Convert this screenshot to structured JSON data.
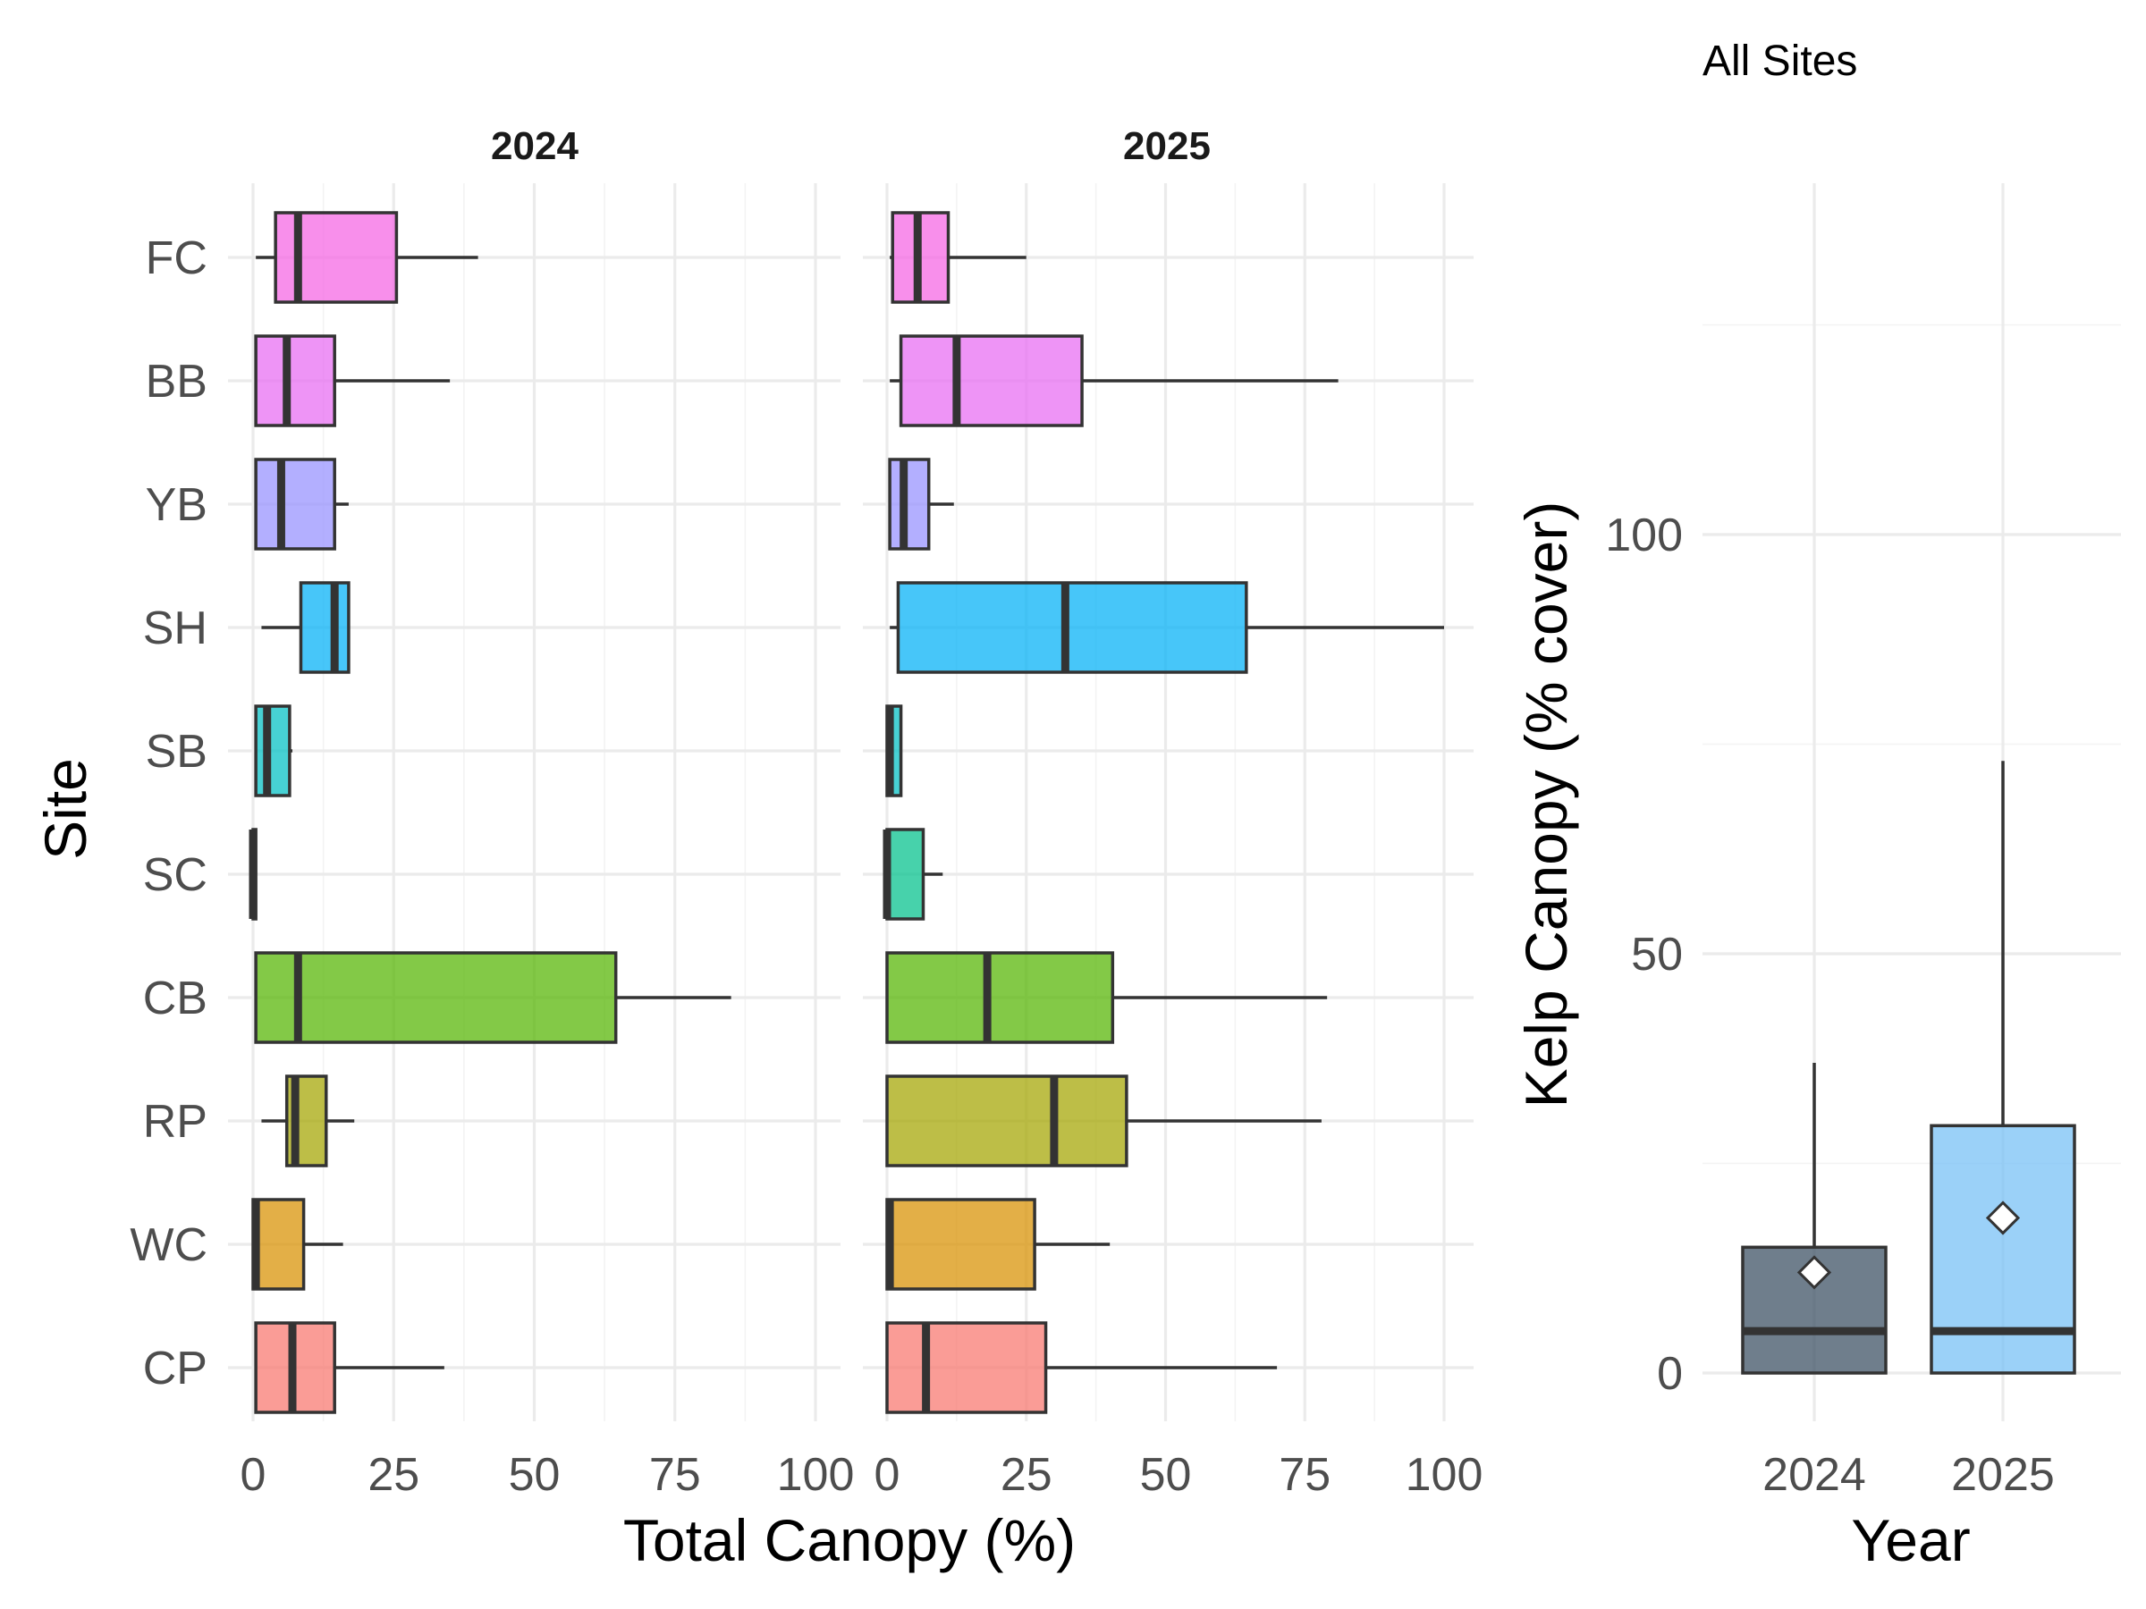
{
  "colors": {
    "FC": "#F564E3",
    "BB": "#E76BF3",
    "YB": "#9590FF",
    "SH": "#00B0F6",
    "SB": "#00BFC4",
    "SC": "#00C08B",
    "CB": "#53B400",
    "RP": "#A3A500",
    "WC": "#D89000",
    "CP": "#F8766D",
    "year_2024": "#3F5366",
    "year_2025": "#74BFF5"
  },
  "chart_data": [
    {
      "type": "boxplot",
      "orientation": "horizontal",
      "xlabel": "Total Canopy (%)",
      "ylabel": "Site",
      "xlim": [
        0,
        100
      ],
      "xticks": [
        "0",
        "25",
        "50",
        "75",
        "100"
      ],
      "sites": [
        "FC",
        "BB",
        "YB",
        "SH",
        "SB",
        "SC",
        "CB",
        "RP",
        "WC",
        "CP"
      ],
      "grid": true,
      "facets": [
        {
          "label": "2024",
          "boxes": [
            {
              "site": "FC",
              "min": 0.5,
              "q1": 4,
              "median": 8,
              "q3": 25.5,
              "max": 40
            },
            {
              "site": "BB",
              "min": 0.5,
              "q1": 0.5,
              "median": 6,
              "q3": 14.5,
              "max": 35
            },
            {
              "site": "YB",
              "min": 0.5,
              "q1": 0.5,
              "median": 5,
              "q3": 14.5,
              "max": 17
            },
            {
              "site": "SH",
              "min": 1.5,
              "q1": 8.5,
              "median": 14.5,
              "q3": 17,
              "max": 17
            },
            {
              "site": "SB",
              "min": 0.5,
              "q1": 0.5,
              "median": 2.5,
              "q3": 6.5,
              "max": 7
            },
            {
              "site": "SC",
              "min": 0,
              "q1": 0,
              "median": 0,
              "q3": 0.5,
              "max": 0.5
            },
            {
              "site": "CB",
              "min": 0.5,
              "q1": 0.5,
              "median": 8,
              "q3": 64.5,
              "max": 85
            },
            {
              "site": "RP",
              "min": 1.5,
              "q1": 6,
              "median": 7.5,
              "q3": 13,
              "max": 18
            },
            {
              "site": "WC",
              "min": 0,
              "q1": 0,
              "median": 0.5,
              "q3": 9,
              "max": 16
            },
            {
              "site": "CP",
              "min": 0.5,
              "q1": 0.5,
              "median": 7,
              "q3": 14.5,
              "max": 34
            }
          ]
        },
        {
          "label": "2025",
          "boxes": [
            {
              "site": "FC",
              "min": 0.5,
              "q1": 1,
              "median": 5.5,
              "q3": 11,
              "max": 25
            },
            {
              "site": "BB",
              "min": 0.5,
              "q1": 2.5,
              "median": 12.5,
              "q3": 35,
              "max": 81
            },
            {
              "site": "YB",
              "min": 0.5,
              "q1": 0.5,
              "median": 3,
              "q3": 7.5,
              "max": 12
            },
            {
              "site": "SH",
              "min": 0.5,
              "q1": 2,
              "median": 32,
              "q3": 64.5,
              "max": 100
            },
            {
              "site": "SB",
              "min": 0,
              "q1": 0,
              "median": 0.5,
              "q3": 2.5,
              "max": 2.5
            },
            {
              "site": "SC",
              "min": 0,
              "q1": 0,
              "median": 0,
              "q3": 6.5,
              "max": 10
            },
            {
              "site": "CB",
              "min": 0,
              "q1": 0,
              "median": 18,
              "q3": 40.5,
              "max": 79
            },
            {
              "site": "RP",
              "min": 0,
              "q1": 0,
              "median": 30,
              "q3": 43,
              "max": 78
            },
            {
              "site": "WC",
              "min": 0,
              "q1": 0,
              "median": 0.5,
              "q3": 26.5,
              "max": 40
            },
            {
              "site": "CP",
              "min": 0,
              "q1": 0,
              "median": 7,
              "q3": 28.5,
              "max": 70
            }
          ]
        }
      ]
    },
    {
      "type": "boxplot",
      "orientation": "vertical",
      "title": "All Sites",
      "xlabel": "Year",
      "ylabel": "Kelp Canopy (% cover)",
      "ylim": [
        -6,
        128
      ],
      "yticks": [
        "0",
        "50",
        "100"
      ],
      "categories": [
        "2024",
        "2025"
      ],
      "grid": true,
      "boxes": [
        {
          "category": "2024",
          "min": 0,
          "q1": 0,
          "median": 5,
          "q3": 15,
          "max": 37,
          "mean": 12
        },
        {
          "category": "2025",
          "min": 0,
          "q1": 0,
          "median": 5,
          "q3": 29.5,
          "max": 73,
          "mean": 18.5
        }
      ]
    }
  ]
}
